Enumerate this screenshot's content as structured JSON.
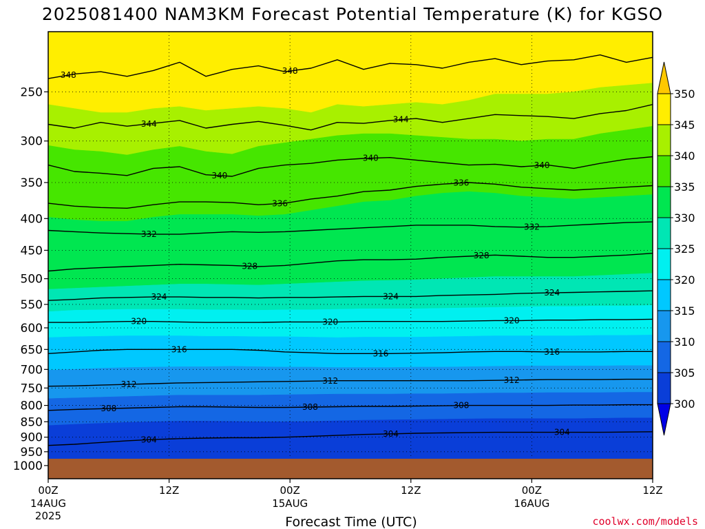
{
  "title": "2025081400 NAM3KM Forecast Potential Temperature (K) for KGSO",
  "credit": "coolwx.com/models",
  "chart_data": {
    "type": "heatmap",
    "title": "2025081400 NAM3KM Forecast Potential Temperature (K) for KGSO",
    "xlabel": "Forecast Time (UTC)",
    "ylabel": "",
    "x_ticks": [
      {
        "hour": 0,
        "label": "00Z",
        "date": "14AUG",
        "year": "2025"
      },
      {
        "hour": 12,
        "label": "12Z",
        "date": "",
        "year": ""
      },
      {
        "hour": 24,
        "label": "00Z",
        "date": "15AUG",
        "year": ""
      },
      {
        "hour": 36,
        "label": "12Z",
        "date": "",
        "year": ""
      },
      {
        "hour": 48,
        "label": "00Z",
        "date": "16AUG",
        "year": ""
      },
      {
        "hour": 60,
        "label": "12Z",
        "date": "",
        "year": ""
      }
    ],
    "xlim": [
      0,
      60
    ],
    "y_ticks": [
      250,
      300,
      350,
      400,
      450,
      500,
      550,
      600,
      650,
      700,
      750,
      800,
      850,
      900,
      950,
      1000
    ],
    "y_tick_labels": [
      "250",
      "300",
      "350",
      "400",
      "450",
      "500",
      "550",
      "600",
      "650",
      "700",
      "750",
      "800",
      "850",
      "900",
      "950",
      "1000"
    ],
    "ylim": [
      200,
      1050
    ],
    "y_scale": "log",
    "y_inverted": true,
    "surface_pressure": 975,
    "grid": "dotted",
    "colorbar": {
      "levels": [
        300,
        305,
        310,
        315,
        320,
        325,
        330,
        335,
        340,
        345,
        350
      ],
      "tick_labels": [
        "300",
        "305",
        "310",
        "315",
        "320",
        "325",
        "330",
        "335",
        "340",
        "345",
        "350"
      ],
      "colors": [
        "#0000e6",
        "#0a3ed8",
        "#1467e4",
        "#1797ee",
        "#00c8ff",
        "#00f0f0",
        "#00e6b4",
        "#00e650",
        "#46e600",
        "#a8f000",
        "#ffee00",
        "#ffc800"
      ],
      "extend": "both"
    },
    "contour_interval": 2,
    "contours": [
      {
        "value": 348,
        "label": "348",
        "p": [
          238,
          234,
          232,
          236,
          231,
          224,
          236,
          230,
          227,
          232,
          229,
          222,
          230,
          225,
          226,
          229,
          224,
          221,
          226,
          223,
          222,
          218,
          224,
          220
        ],
        "labels_at": [
          2,
          24
        ]
      },
      {
        "value": 344,
        "label": "344",
        "p": [
          282,
          286,
          280,
          284,
          281,
          278,
          286,
          282,
          279,
          283,
          288,
          280,
          281,
          278,
          276,
          280,
          276,
          272,
          273,
          274,
          276,
          271,
          268,
          262
        ],
        "labels_at": [
          10,
          35
        ]
      },
      {
        "value": 340,
        "label": "340",
        "p": [
          328,
          336,
          338,
          341,
          332,
          330,
          340,
          342,
          332,
          328,
          326,
          322,
          320,
          319,
          322,
          325,
          328,
          327,
          330,
          328,
          332,
          326,
          321,
          318
        ],
        "labels_at": [
          17,
          32,
          49
        ]
      },
      {
        "value": 336,
        "label": "336",
        "p": [
          378,
          382,
          384,
          385,
          380,
          376,
          376,
          377,
          380,
          378,
          372,
          368,
          362,
          360,
          355,
          352,
          350,
          352,
          356,
          358,
          360,
          358,
          356,
          354
        ],
        "labels_at": [
          23,
          41
        ]
      },
      {
        "value": 332,
        "label": "332",
        "p": [
          418,
          420,
          422,
          423,
          424,
          424,
          422,
          420,
          421,
          420,
          418,
          416,
          414,
          412,
          410,
          410,
          410,
          412,
          413,
          412,
          410,
          408,
          406,
          405
        ],
        "labels_at": [
          10,
          48
        ]
      },
      {
        "value": 328,
        "label": "328",
        "p": [
          486,
          482,
          480,
          478,
          476,
          474,
          475,
          476,
          478,
          476,
          472,
          468,
          466,
          466,
          465,
          462,
          460,
          458,
          460,
          462,
          462,
          460,
          458,
          455
        ],
        "labels_at": [
          20,
          43
        ]
      },
      {
        "value": 324,
        "label": "324",
        "p": [
          542,
          540,
          537,
          536,
          535,
          535,
          536,
          536,
          537,
          536,
          536,
          535,
          534,
          534,
          534,
          532,
          531,
          530,
          528,
          527,
          526,
          525,
          524,
          523
        ],
        "labels_at": [
          11,
          34,
          50
        ]
      },
      {
        "value": 320,
        "label": "320",
        "p": [
          588,
          588,
          587,
          586,
          586,
          587,
          588,
          588,
          588,
          587,
          587,
          587,
          586,
          586,
          586,
          586,
          585,
          584,
          584,
          583,
          583,
          582,
          582,
          581
        ],
        "labels_at": [
          9,
          28,
          46
        ]
      },
      {
        "value": 316,
        "label": "316",
        "p": [
          660,
          656,
          652,
          650,
          650,
          650,
          650,
          650,
          652,
          656,
          658,
          660,
          660,
          660,
          659,
          658,
          656,
          655,
          655,
          656,
          656,
          656,
          655,
          655
        ],
        "labels_at": [
          13,
          33,
          50
        ]
      },
      {
        "value": 312,
        "label": "312",
        "p": [
          745,
          744,
          742,
          740,
          738,
          736,
          735,
          734,
          733,
          732,
          731,
          730,
          730,
          730,
          730,
          730,
          730,
          729,
          728,
          727,
          727,
          727,
          726,
          726
        ],
        "labels_at": [
          8,
          28,
          46
        ]
      },
      {
        "value": 308,
        "label": "308",
        "p": [
          815,
          812,
          810,
          808,
          806,
          804,
          804,
          805,
          806,
          806,
          805,
          804,
          803,
          803,
          802,
          801,
          800,
          800,
          800,
          800,
          799,
          799,
          798,
          798
        ],
        "labels_at": [
          6,
          26,
          41
        ]
      },
      {
        "value": 304,
        "label": "304",
        "p": [
          928,
          924,
          918,
          912,
          908,
          905,
          903,
          902,
          902,
          900,
          897,
          894,
          891,
          889,
          887,
          886,
          885,
          884,
          884,
          884,
          884,
          884,
          883,
          882
        ],
        "labels_at": [
          10,
          34,
          51
        ]
      }
    ],
    "bands": [
      {
        "value_range": [
          345,
          350
        ],
        "p_top": [
          200,
          200,
          200,
          200,
          200,
          200,
          200,
          200,
          200,
          200,
          200,
          200,
          200,
          200,
          200,
          200,
          200,
          200,
          200,
          200,
          200,
          200,
          200,
          200
        ],
        "p_bot": [
          262,
          266,
          270,
          270,
          266,
          264,
          268,
          266,
          264,
          266,
          270,
          262,
          264,
          262,
          260,
          262,
          258,
          252,
          252,
          252,
          250,
          246,
          244,
          242
        ]
      },
      {
        "value_range": [
          340,
          345
        ],
        "p_top": [
          262,
          266,
          270,
          270,
          266,
          264,
          268,
          266,
          264,
          266,
          270,
          262,
          264,
          262,
          260,
          262,
          258,
          252,
          252,
          252,
          250,
          246,
          244,
          242
        ],
        "p_bot": [
          305,
          310,
          312,
          316,
          310,
          306,
          312,
          315,
          306,
          302,
          298,
          294,
          292,
          292,
          294,
          296,
          298,
          298,
          300,
          298,
          298,
          292,
          288,
          284
        ]
      },
      {
        "value_range": [
          335,
          340
        ],
        "p_top": [
          305,
          310,
          312,
          316,
          310,
          306,
          312,
          315,
          306,
          302,
          298,
          294,
          292,
          292,
          294,
          296,
          298,
          298,
          300,
          298,
          298,
          292,
          288,
          284
        ],
        "p_bot": [
          398,
          402,
          404,
          404,
          398,
          394,
          394,
          394,
          396,
          394,
          388,
          382,
          376,
          374,
          368,
          364,
          362,
          364,
          368,
          370,
          372,
          370,
          368,
          366
        ]
      },
      {
        "value_range": [
          330,
          335
        ],
        "p_top": [
          398,
          402,
          404,
          404,
          398,
          394,
          394,
          394,
          396,
          394,
          388,
          382,
          376,
          374,
          368,
          364,
          362,
          364,
          368,
          370,
          372,
          370,
          368,
          366
        ],
        "p_bot": [
          520,
          518,
          516,
          514,
          512,
          510,
          510,
          511,
          512,
          510,
          508,
          506,
          504,
          503,
          502,
          500,
          498,
          496,
          496,
          496,
          496,
          494,
          492,
          490
        ]
      },
      {
        "value_range": [
          325,
          330
        ],
        "p_top": [
          520,
          518,
          516,
          514,
          512,
          510,
          510,
          511,
          512,
          510,
          508,
          506,
          504,
          503,
          502,
          500,
          498,
          496,
          496,
          496,
          496,
          494,
          492,
          490
        ],
        "p_bot": [
          565,
          562,
          561,
          560,
          560,
          560,
          561,
          561,
          562,
          561,
          561,
          560,
          559,
          559,
          559,
          558,
          557,
          556,
          555,
          554,
          554,
          553,
          553,
          552
        ]
      },
      {
        "value_range": [
          320,
          325
        ],
        "p_top": [
          565,
          562,
          561,
          560,
          560,
          560,
          561,
          561,
          562,
          561,
          561,
          560,
          559,
          559,
          559,
          558,
          557,
          556,
          555,
          554,
          554,
          553,
          553,
          552
        ],
        "p_bot": [
          622,
          620,
          619,
          618,
          618,
          618,
          619,
          619,
          620,
          620,
          621,
          622,
          621,
          621,
          621,
          620,
          619,
          618,
          618,
          618,
          618,
          617,
          617,
          616
        ]
      },
      {
        "value_range": [
          315,
          320
        ],
        "p_top": [
          622,
          620,
          619,
          618,
          618,
          618,
          619,
          619,
          620,
          620,
          621,
          622,
          621,
          621,
          621,
          620,
          619,
          618,
          618,
          618,
          618,
          617,
          617,
          616
        ],
        "p_bot": [
          702,
          700,
          697,
          695,
          694,
          693,
          693,
          692,
          693,
          694,
          694,
          695,
          695,
          695,
          694,
          694,
          693,
          692,
          691,
          691,
          691,
          691,
          690,
          690
        ]
      },
      {
        "value_range": [
          310,
          315
        ],
        "p_top": [
          702,
          700,
          697,
          695,
          694,
          693,
          693,
          692,
          693,
          694,
          694,
          695,
          695,
          695,
          694,
          694,
          693,
          692,
          691,
          691,
          691,
          691,
          690,
          690
        ],
        "p_bot": [
          780,
          778,
          776,
          774,
          772,
          770,
          770,
          770,
          770,
          769,
          768,
          767,
          767,
          767,
          766,
          766,
          765,
          764,
          764,
          763,
          763,
          763,
          762,
          762
        ]
      },
      {
        "value_range": [
          305,
          310
        ],
        "p_top": [
          780,
          778,
          776,
          774,
          772,
          770,
          770,
          770,
          770,
          769,
          768,
          767,
          767,
          767,
          766,
          766,
          765,
          764,
          764,
          763,
          763,
          763,
          762,
          762
        ],
        "p_bot": [
          862,
          858,
          855,
          852,
          850,
          848,
          848,
          849,
          850,
          850,
          849,
          847,
          845,
          844,
          843,
          842,
          841,
          840,
          840,
          840,
          840,
          839,
          838,
          838
        ]
      },
      {
        "value_range": [
          300,
          305
        ],
        "p_top": [
          862,
          858,
          855,
          852,
          850,
          848,
          848,
          849,
          850,
          850,
          849,
          847,
          845,
          844,
          843,
          842,
          841,
          840,
          840,
          840,
          840,
          839,
          838,
          838
        ],
        "p_bot": [
          975,
          975,
          975,
          975,
          975,
          975,
          975,
          975,
          975,
          975,
          975,
          975,
          975,
          975,
          975,
          975,
          975,
          975,
          975,
          975,
          975,
          975,
          975,
          975
        ]
      }
    ]
  }
}
